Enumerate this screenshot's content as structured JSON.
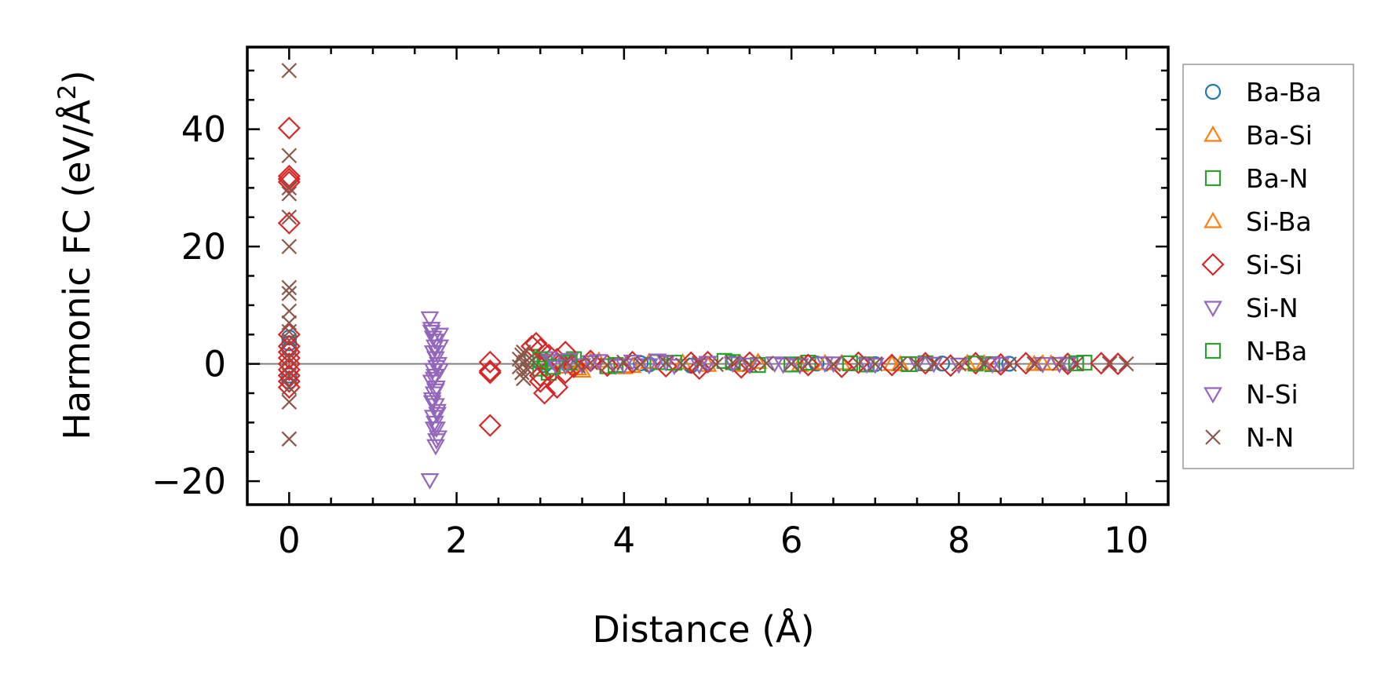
{
  "chart_data": {
    "type": "scatter",
    "xlabel": "Distance (Å)",
    "ylabel_main": "Harmonic FC (eV/Å",
    "ylabel_sup": "2",
    "ylabel_end": ")",
    "xlim": [
      -0.5,
      10.5
    ],
    "ylim": [
      -24,
      54
    ],
    "xticks": [
      0,
      2,
      4,
      6,
      8,
      10
    ],
    "xtick_labels": [
      "0",
      "2",
      "4",
      "6",
      "8",
      "10"
    ],
    "yticks": [
      -20,
      0,
      20,
      40
    ],
    "ytick_labels": [
      "−20",
      "0",
      "20",
      "40"
    ],
    "x_minor_step": 0.5,
    "y_minor_step": 5,
    "zero_line": true,
    "grid": false,
    "legend_position": "outside-right",
    "series": [
      {
        "name": "Ba-Ba",
        "marker": "circle",
        "color": "#1f77b4",
        "points": [
          [
            0,
            4.5
          ],
          [
            0,
            3.5
          ],
          [
            0,
            2.5
          ],
          [
            0,
            -2
          ],
          [
            0,
            -3
          ],
          [
            3.0,
            0.2
          ],
          [
            3.05,
            -0.2
          ],
          [
            4.2,
            0.1
          ],
          [
            4.3,
            -0.1
          ],
          [
            4.8,
            -0.3
          ],
          [
            5.3,
            0.1
          ],
          [
            6.3,
            0.05
          ],
          [
            7.0,
            -0.05
          ],
          [
            7.8,
            0.05
          ],
          [
            8.6,
            0.02
          ]
        ]
      },
      {
        "name": "Ba-Si",
        "marker": "triangle-up",
        "color": "#ff7f0e",
        "points": [
          [
            3.2,
            0.6
          ],
          [
            3.3,
            -0.5
          ],
          [
            3.5,
            -1.2
          ],
          [
            3.6,
            0.4
          ],
          [
            4.0,
            -0.6
          ],
          [
            4.3,
            0.3
          ],
          [
            5.0,
            -0.2
          ],
          [
            5.6,
            0.3
          ],
          [
            6.1,
            -0.2
          ],
          [
            6.6,
            0.1
          ],
          [
            7.3,
            -0.1
          ],
          [
            8.1,
            0.1
          ],
          [
            8.9,
            -0.05
          ],
          [
            9.0,
            0.05
          ]
        ]
      },
      {
        "name": "Ba-N",
        "marker": "square",
        "color": "#2ca02c",
        "points": [
          [
            2.9,
            1.2
          ],
          [
            3.0,
            -0.8
          ],
          [
            3.05,
            0.4
          ],
          [
            3.1,
            -1.5
          ],
          [
            3.4,
            0.8
          ],
          [
            3.8,
            -0.4
          ],
          [
            4.4,
            0.3
          ],
          [
            5.2,
            0.5
          ],
          [
            5.6,
            -0.2
          ],
          [
            6.2,
            0.2
          ],
          [
            6.9,
            -0.1
          ],
          [
            7.6,
            0.1
          ],
          [
            8.4,
            -0.05
          ],
          [
            9.5,
            0.2
          ]
        ]
      },
      {
        "name": "Si-Ba",
        "marker": "triangle-up",
        "color": "#ff7f0e",
        "points": [
          [
            3.25,
            0.3
          ],
          [
            3.45,
            -0.8
          ],
          [
            3.7,
            0.5
          ],
          [
            4.1,
            -0.4
          ],
          [
            4.7,
            0.2
          ],
          [
            5.4,
            -0.2
          ],
          [
            6.4,
            0.1
          ],
          [
            7.2,
            -0.05
          ],
          [
            8.3,
            0.05
          ],
          [
            9.1,
            0.0
          ]
        ]
      },
      {
        "name": "Si-Si",
        "marker": "diamond",
        "color": "#d62728",
        "points": [
          [
            0,
            40.2
          ],
          [
            0,
            32
          ],
          [
            0,
            31.5
          ],
          [
            0,
            31
          ],
          [
            0,
            24
          ],
          [
            0,
            5
          ],
          [
            0,
            3
          ],
          [
            0,
            2
          ],
          [
            0,
            1
          ],
          [
            0,
            0
          ],
          [
            0,
            -1
          ],
          [
            0,
            -2
          ],
          [
            0,
            -3
          ],
          [
            0,
            -4
          ],
          [
            2.4,
            0.3
          ],
          [
            2.4,
            -1.2
          ],
          [
            2.4,
            -1.5
          ],
          [
            2.4,
            -10.5
          ],
          [
            2.9,
            3
          ],
          [
            2.95,
            3.5
          ],
          [
            3.0,
            2.5
          ],
          [
            3.0,
            -2
          ],
          [
            3.0,
            -3
          ],
          [
            3.05,
            -5
          ],
          [
            3.1,
            1.5
          ],
          [
            3.1,
            -1
          ],
          [
            3.2,
            0.8
          ],
          [
            3.2,
            -4
          ],
          [
            3.3,
            -1.5
          ],
          [
            3.3,
            2
          ],
          [
            3.4,
            -0.5
          ],
          [
            3.6,
            0.5
          ],
          [
            3.8,
            -0.3
          ],
          [
            4.1,
            0.3
          ],
          [
            4.5,
            -0.4
          ],
          [
            4.8,
            0.2
          ],
          [
            4.9,
            -0.8
          ],
          [
            5.0,
            0.3
          ],
          [
            5.4,
            -0.6
          ],
          [
            5.5,
            0.2
          ],
          [
            6.2,
            -0.2
          ],
          [
            6.6,
            -0.5
          ],
          [
            6.8,
            0.2
          ],
          [
            7.2,
            -0.2
          ],
          [
            7.6,
            0.1
          ],
          [
            7.9,
            -0.3
          ],
          [
            8.2,
            0.1
          ],
          [
            8.5,
            -0.1
          ],
          [
            8.8,
            0.1
          ],
          [
            9.3,
            0.0
          ],
          [
            9.7,
            0.1
          ],
          [
            9.9,
            0.0
          ]
        ]
      },
      {
        "name": "Si-N",
        "marker": "triangle-down",
        "color": "#9467bd",
        "points": [
          [
            1.68,
            7.8
          ],
          [
            1.7,
            6
          ],
          [
            1.72,
            4.5
          ],
          [
            1.74,
            3
          ],
          [
            1.76,
            2
          ],
          [
            1.75,
            1
          ],
          [
            1.78,
            0
          ],
          [
            1.72,
            -1
          ],
          [
            1.74,
            -2
          ],
          [
            1.7,
            -3
          ],
          [
            1.76,
            -4
          ],
          [
            1.73,
            -5
          ],
          [
            1.71,
            -6
          ],
          [
            1.75,
            -7
          ],
          [
            1.77,
            -8
          ],
          [
            1.72,
            -9
          ],
          [
            1.74,
            -10
          ],
          [
            1.76,
            -11
          ],
          [
            1.78,
            -12.5
          ],
          [
            1.75,
            -14
          ],
          [
            1.68,
            -19.8
          ],
          [
            1.8,
            5
          ],
          [
            1.8,
            3
          ],
          [
            1.8,
            -1
          ],
          [
            3.1,
            1
          ],
          [
            3.2,
            -0.5
          ],
          [
            3.35,
            0.7
          ],
          [
            3.5,
            -0.2
          ],
          [
            3.7,
            0.5
          ],
          [
            3.9,
            -0.3
          ],
          [
            4.1,
            0.4
          ],
          [
            4.3,
            -0.2
          ],
          [
            4.4,
            0.6
          ],
          [
            4.6,
            -0.3
          ],
          [
            5.0,
            0.2
          ],
          [
            5.5,
            -0.1
          ],
          [
            5.8,
            0.1
          ],
          [
            6.1,
            -0.2
          ],
          [
            6.5,
            0.1
          ],
          [
            7.0,
            -0.1
          ],
          [
            7.5,
            0.1
          ],
          [
            8.0,
            -0.1
          ],
          [
            8.5,
            0.05
          ],
          [
            9.0,
            0.0
          ],
          [
            9.3,
            0.05
          ]
        ]
      },
      {
        "name": "N-Ba",
        "marker": "square",
        "color": "#2ca02c",
        "points": [
          [
            3.0,
            0.8
          ],
          [
            3.15,
            -0.5
          ],
          [
            3.35,
            0.2
          ],
          [
            3.9,
            -0.2
          ],
          [
            4.6,
            0.2
          ],
          [
            5.3,
            0.3
          ],
          [
            6.0,
            -0.1
          ],
          [
            6.7,
            0.1
          ],
          [
            7.4,
            -0.05
          ],
          [
            8.2,
            0.05
          ],
          [
            9.4,
            0.1
          ]
        ]
      },
      {
        "name": "N-Si",
        "marker": "triangle-down",
        "color": "#9467bd",
        "points": [
          [
            1.7,
            5.5
          ],
          [
            1.74,
            4
          ],
          [
            1.72,
            2
          ],
          [
            1.76,
            -0.5
          ],
          [
            1.73,
            -2.5
          ],
          [
            1.75,
            -4.5
          ],
          [
            1.71,
            -6.5
          ],
          [
            1.77,
            -8.5
          ],
          [
            1.73,
            -11
          ],
          [
            1.76,
            -13
          ],
          [
            3.15,
            0.5
          ],
          [
            3.3,
            -0.3
          ],
          [
            3.6,
            0.3
          ],
          [
            4.0,
            -0.2
          ],
          [
            4.5,
            0.3
          ],
          [
            4.9,
            -0.2
          ],
          [
            5.3,
            0.1
          ],
          [
            5.9,
            -0.1
          ],
          [
            6.4,
            0.1
          ],
          [
            6.9,
            -0.05
          ],
          [
            7.7,
            0.05
          ],
          [
            8.4,
            -0.05
          ],
          [
            9.2,
            0.0
          ]
        ]
      },
      {
        "name": "N-N",
        "marker": "x",
        "color": "#8c564b",
        "points": [
          [
            0,
            50
          ],
          [
            0,
            35.5
          ],
          [
            0,
            30
          ],
          [
            0,
            29
          ],
          [
            0,
            25
          ],
          [
            0,
            20
          ],
          [
            0,
            13
          ],
          [
            0,
            12
          ],
          [
            0,
            9
          ],
          [
            0,
            7
          ],
          [
            0,
            5.5
          ],
          [
            0,
            4
          ],
          [
            0,
            1
          ],
          [
            0,
            -2
          ],
          [
            0,
            -4
          ],
          [
            0,
            -6.5
          ],
          [
            0,
            -12.8
          ],
          [
            2.75,
            0.8
          ],
          [
            2.75,
            -0.5
          ],
          [
            2.78,
            1.5
          ],
          [
            2.78,
            -1.5
          ],
          [
            2.8,
            2
          ],
          [
            2.8,
            -2.5
          ],
          [
            2.82,
            0.3
          ],
          [
            2.85,
            -1
          ],
          [
            2.9,
            0.6
          ],
          [
            3.3,
            0.5
          ],
          [
            3.45,
            -0.3
          ],
          [
            3.6,
            0.2
          ],
          [
            3.8,
            -0.2
          ],
          [
            4.0,
            0.3
          ],
          [
            4.2,
            -0.1
          ],
          [
            4.5,
            0.2
          ],
          [
            4.7,
            -0.2
          ],
          [
            4.9,
            0.1
          ],
          [
            5.1,
            -0.1
          ],
          [
            5.3,
            0.2
          ],
          [
            5.5,
            -0.1
          ],
          [
            5.7,
            0.1
          ],
          [
            6.0,
            0.0
          ],
          [
            6.2,
            0.1
          ],
          [
            6.5,
            -0.05
          ],
          [
            6.8,
            0.05
          ],
          [
            7.0,
            0.0
          ],
          [
            7.3,
            0.05
          ],
          [
            7.5,
            -0.05
          ],
          [
            7.7,
            0.05
          ],
          [
            8.0,
            0.0
          ],
          [
            8.3,
            0.05
          ],
          [
            8.6,
            -0.05
          ],
          [
            8.9,
            0.0
          ],
          [
            9.2,
            0.05
          ],
          [
            9.4,
            0.0
          ],
          [
            9.8,
            0.05
          ],
          [
            10.0,
            0.0
          ]
        ]
      }
    ]
  }
}
